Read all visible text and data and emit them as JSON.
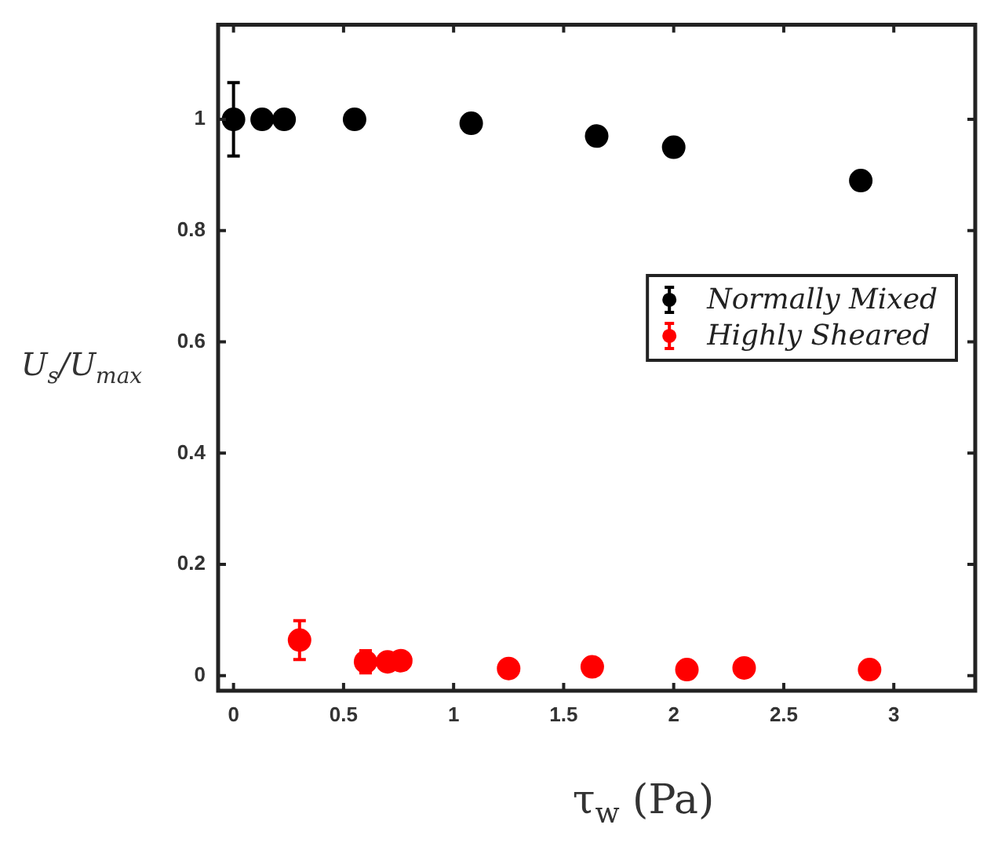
{
  "chart_data": {
    "type": "scatter",
    "xlabel": "τ$_{w}$ (Pa)",
    "ylabel": "U$_{s}$/U$_{max}$",
    "xlim": [
      -0.07,
      3.37
    ],
    "xticks": [
      0,
      0.5,
      1,
      1.5,
      2,
      2.5,
      3
    ],
    "ylim": [
      -0.027,
      1.17
    ],
    "yticks": [
      0,
      0.2,
      0.4,
      0.6,
      0.8,
      1
    ],
    "grid": false,
    "legend": "right",
    "marker": "circle",
    "series": [
      {
        "name": "Normally Mixed",
        "color": "#000000",
        "x": [
          0,
          0.13,
          0.23,
          0.55,
          1.08,
          1.65,
          2.0,
          2.85
        ],
        "values": [
          1,
          1,
          1,
          1,
          0.993,
          0.97,
          0.95,
          0.89
        ],
        "errors": [
          0.066,
          null,
          null,
          null,
          null,
          null,
          null,
          null
        ]
      },
      {
        "name": "Highly Sheared",
        "color": "#ff0000",
        "x": [
          0.3,
          0.6,
          0.7,
          0.76,
          1.25,
          1.63,
          2.06,
          2.32,
          2.89
        ],
        "values": [
          0.064,
          0.025,
          0.025,
          0.027,
          0.013,
          0.016,
          0.011,
          0.014,
          0.011
        ],
        "errors": [
          0.035,
          0.02,
          null,
          0.015,
          null,
          null,
          null,
          null,
          null
        ]
      }
    ]
  }
}
